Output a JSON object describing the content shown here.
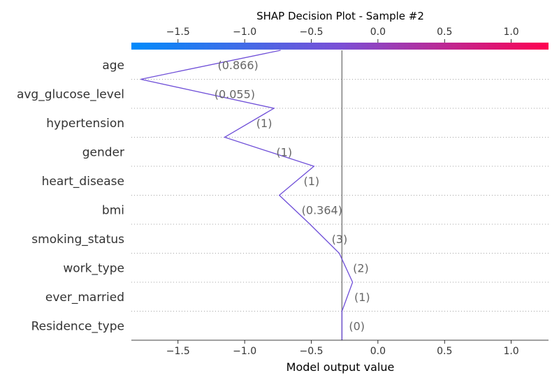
{
  "chart_data": {
    "type": "line",
    "title": "SHAP Decision Plot - Sample #2",
    "xlabel": "Model output value",
    "xlim": [
      -1.85,
      1.28
    ],
    "xticks": [
      -1.5,
      -1.0,
      -0.5,
      0.0,
      0.5,
      1.0
    ],
    "xtick_labels": [
      "−1.5",
      "−1.0",
      "−0.5",
      "0.0",
      "0.5",
      "1.0"
    ],
    "base_value": -0.27,
    "colorbar": {
      "from": "#008bfb",
      "mid": "#7a4fd6",
      "to": "#ff0051"
    },
    "line_color": "#6f4fd8",
    "features": [
      {
        "name": "age",
        "value_label": "(0.866)"
      },
      {
        "name": "avg_glucose_level",
        "value_label": "(0.055)"
      },
      {
        "name": "hypertension",
        "value_label": "(1)"
      },
      {
        "name": "gender",
        "value_label": "(1)"
      },
      {
        "name": "heart_disease",
        "value_label": "(1)"
      },
      {
        "name": "bmi",
        "value_label": "(0.364)"
      },
      {
        "name": "smoking_status",
        "value_label": "(3)"
      },
      {
        "name": "work_type",
        "value_label": "(2)"
      },
      {
        "name": "ever_married",
        "value_label": "(1)"
      },
      {
        "name": "Residence_type",
        "value_label": "(0)"
      }
    ],
    "path_values": [
      -0.73,
      -1.78,
      -0.78,
      -1.15,
      -0.48,
      -0.74,
      -0.51,
      -0.29,
      -0.19,
      -0.27,
      -0.27
    ]
  }
}
